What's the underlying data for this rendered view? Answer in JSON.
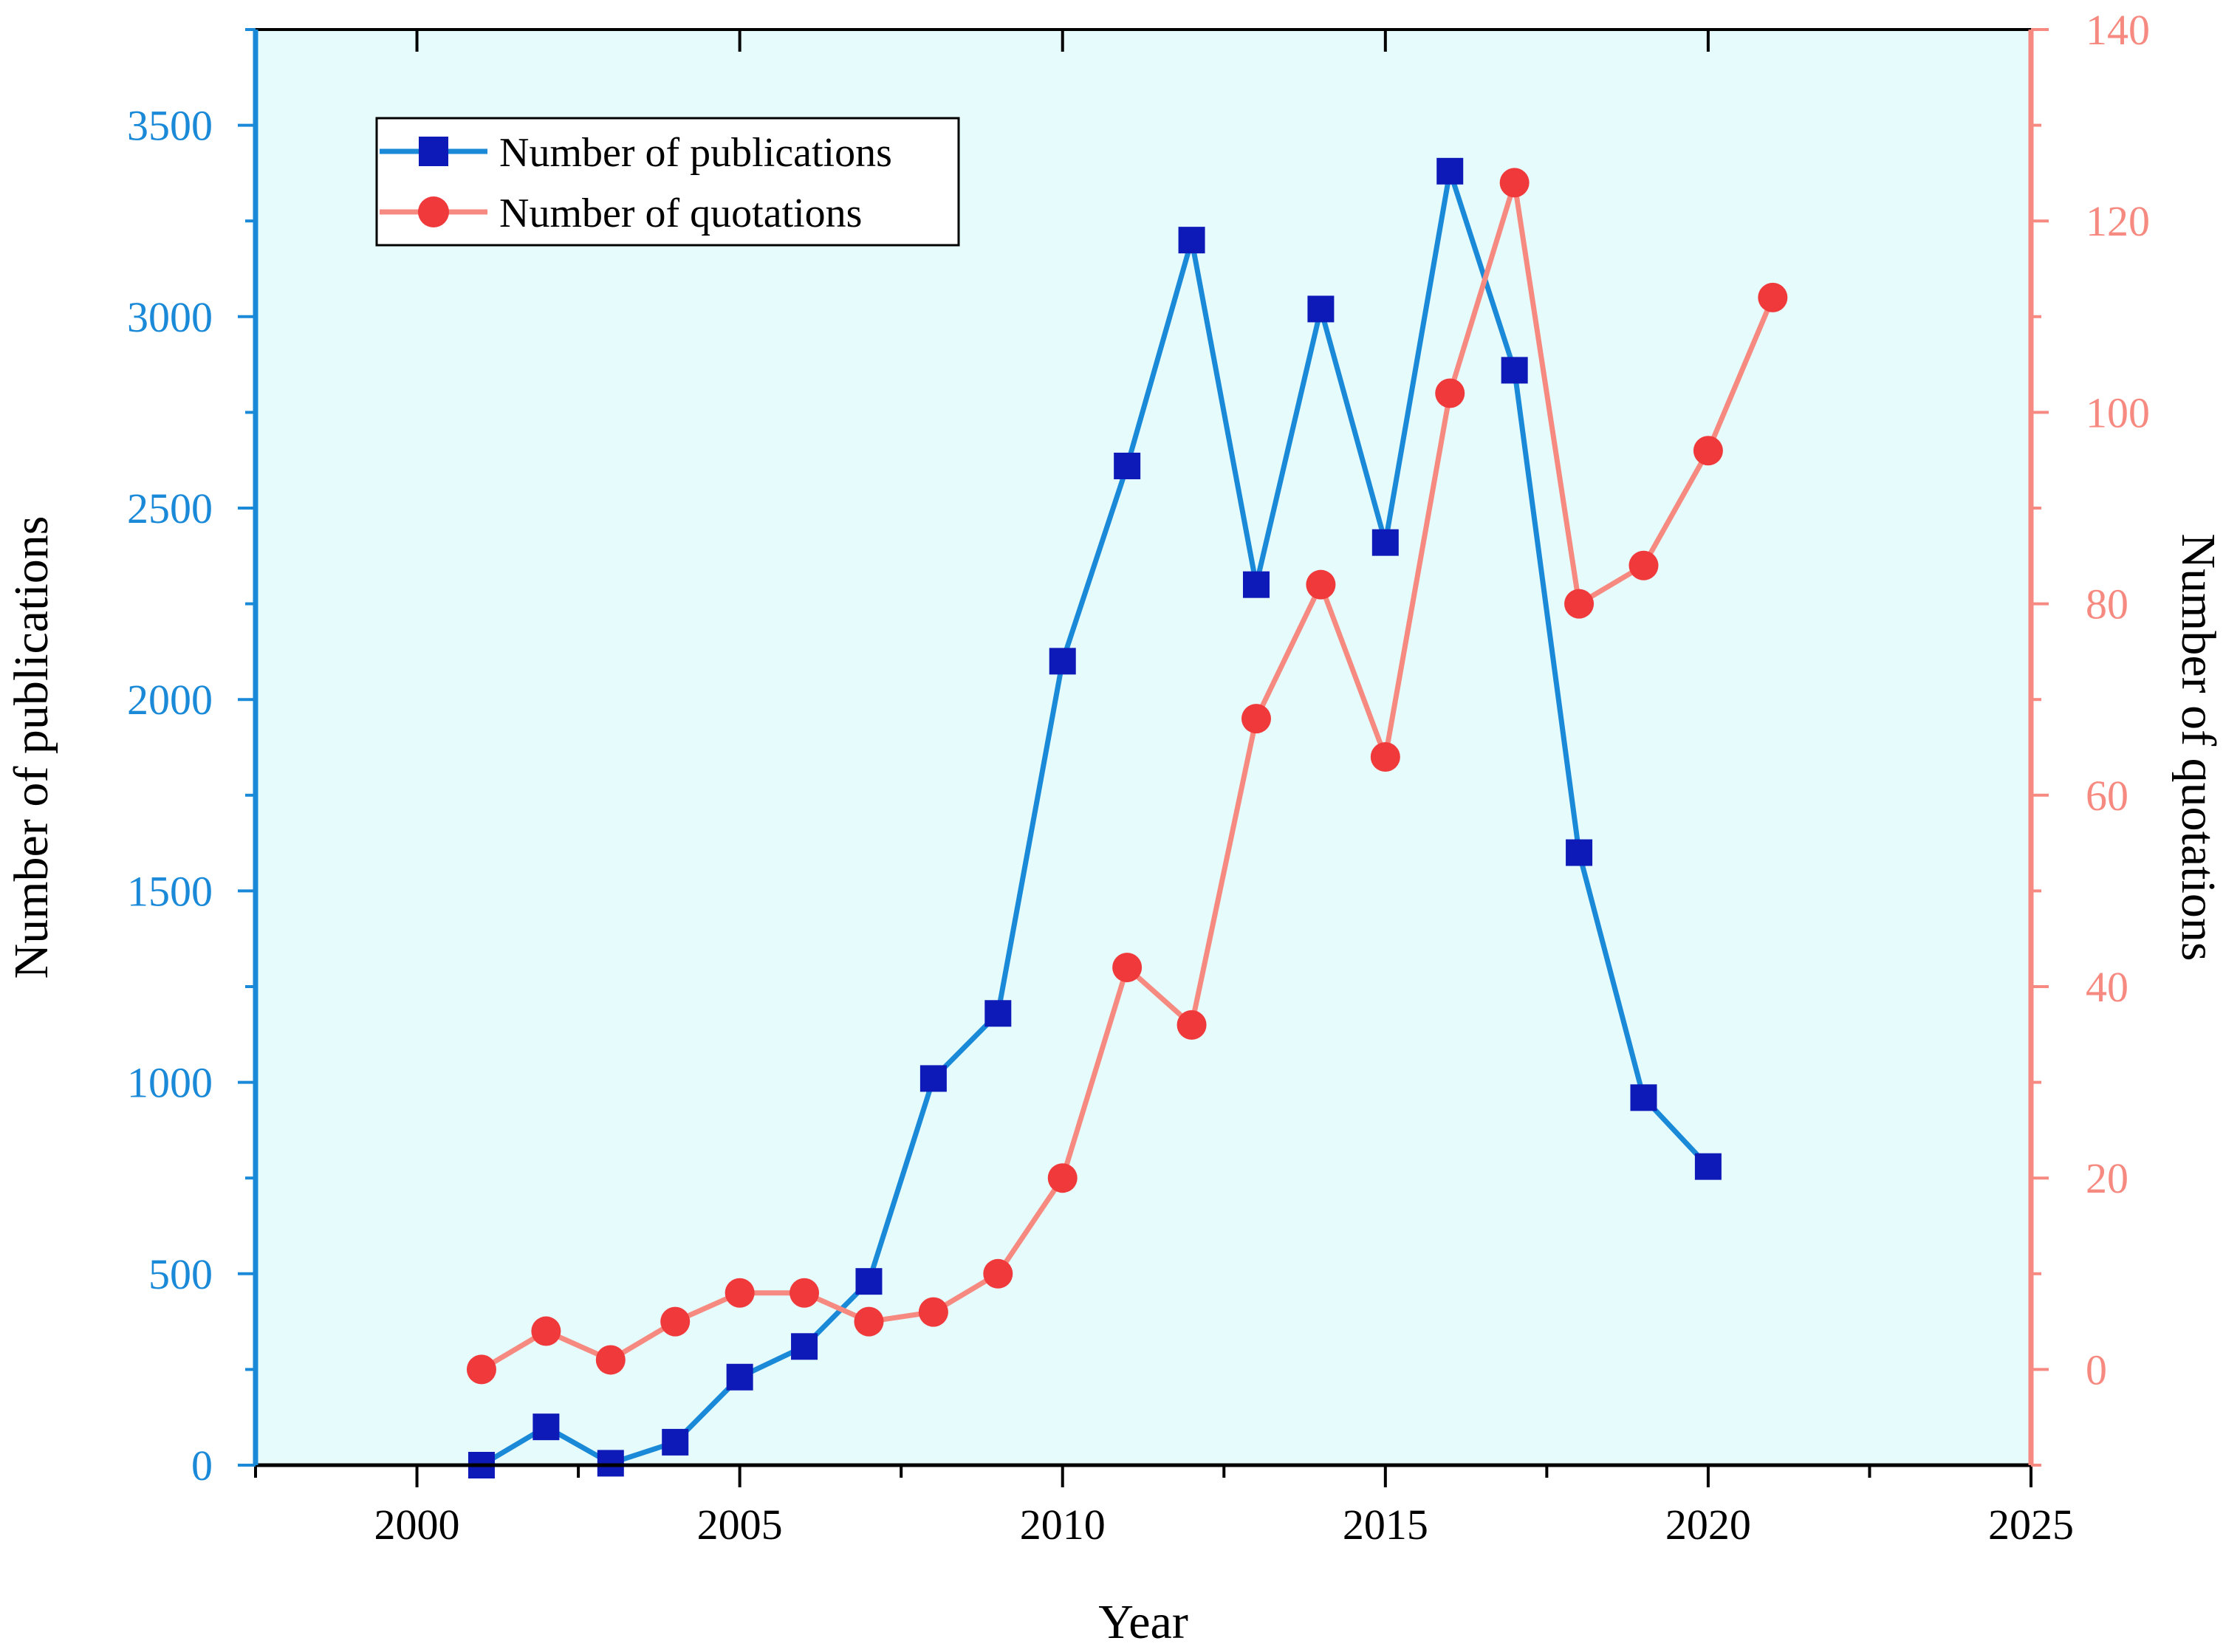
{
  "chart_data": {
    "type": "line",
    "title": "",
    "xlabel": "Year",
    "ylabel": "Number of publications",
    "y2label": "Number of quotations",
    "xlim": [
      1997.5,
      2025
    ],
    "ylim": [
      0,
      3750
    ],
    "y2lim": [
      -10,
      140
    ],
    "xticks": [
      2000,
      2005,
      2010,
      2015,
      2020,
      2025
    ],
    "yticks": [
      0,
      500,
      1000,
      1500,
      2000,
      2500,
      3000,
      3500
    ],
    "y2ticks": [
      0,
      20,
      40,
      60,
      80,
      100,
      120,
      140
    ],
    "grid": false,
    "legend_position": "top-left",
    "colors": {
      "left_axis": "#1a8ad8",
      "right_axis": "#f78a80",
      "plot_background": "#e6fbfc",
      "publications_line": "#1a8ad8",
      "publications_marker": "#0e1ab8",
      "quotations_line": "#f78a80",
      "quotations_marker": "#f0393b"
    },
    "series": [
      {
        "name": "Number of publications",
        "axis": "left",
        "marker": "square",
        "x": [
          2001,
          2002,
          2003,
          2004,
          2005,
          2006,
          2007,
          2008,
          2009,
          2010,
          2011,
          2012,
          2013,
          2014,
          2015,
          2016,
          2017,
          2018,
          2019,
          2020
        ],
        "values": [
          0,
          100,
          5,
          60,
          230,
          310,
          480,
          1010,
          1180,
          2100,
          2610,
          3200,
          2300,
          3020,
          2410,
          3380,
          2860,
          1600,
          960,
          780
        ]
      },
      {
        "name": "Number of quotations",
        "axis": "right",
        "marker": "circle",
        "x": [
          2001,
          2002,
          2003,
          2004,
          2005,
          2006,
          2007,
          2008,
          2009,
          2010,
          2011,
          2012,
          2013,
          2014,
          2015,
          2016,
          2017,
          2018,
          2019,
          2020,
          2021
        ],
        "values": [
          0,
          4,
          1,
          5,
          8,
          8,
          5,
          6,
          10,
          20,
          42,
          36,
          68,
          82,
          64,
          102,
          124,
          80,
          84,
          96,
          112
        ]
      }
    ]
  }
}
